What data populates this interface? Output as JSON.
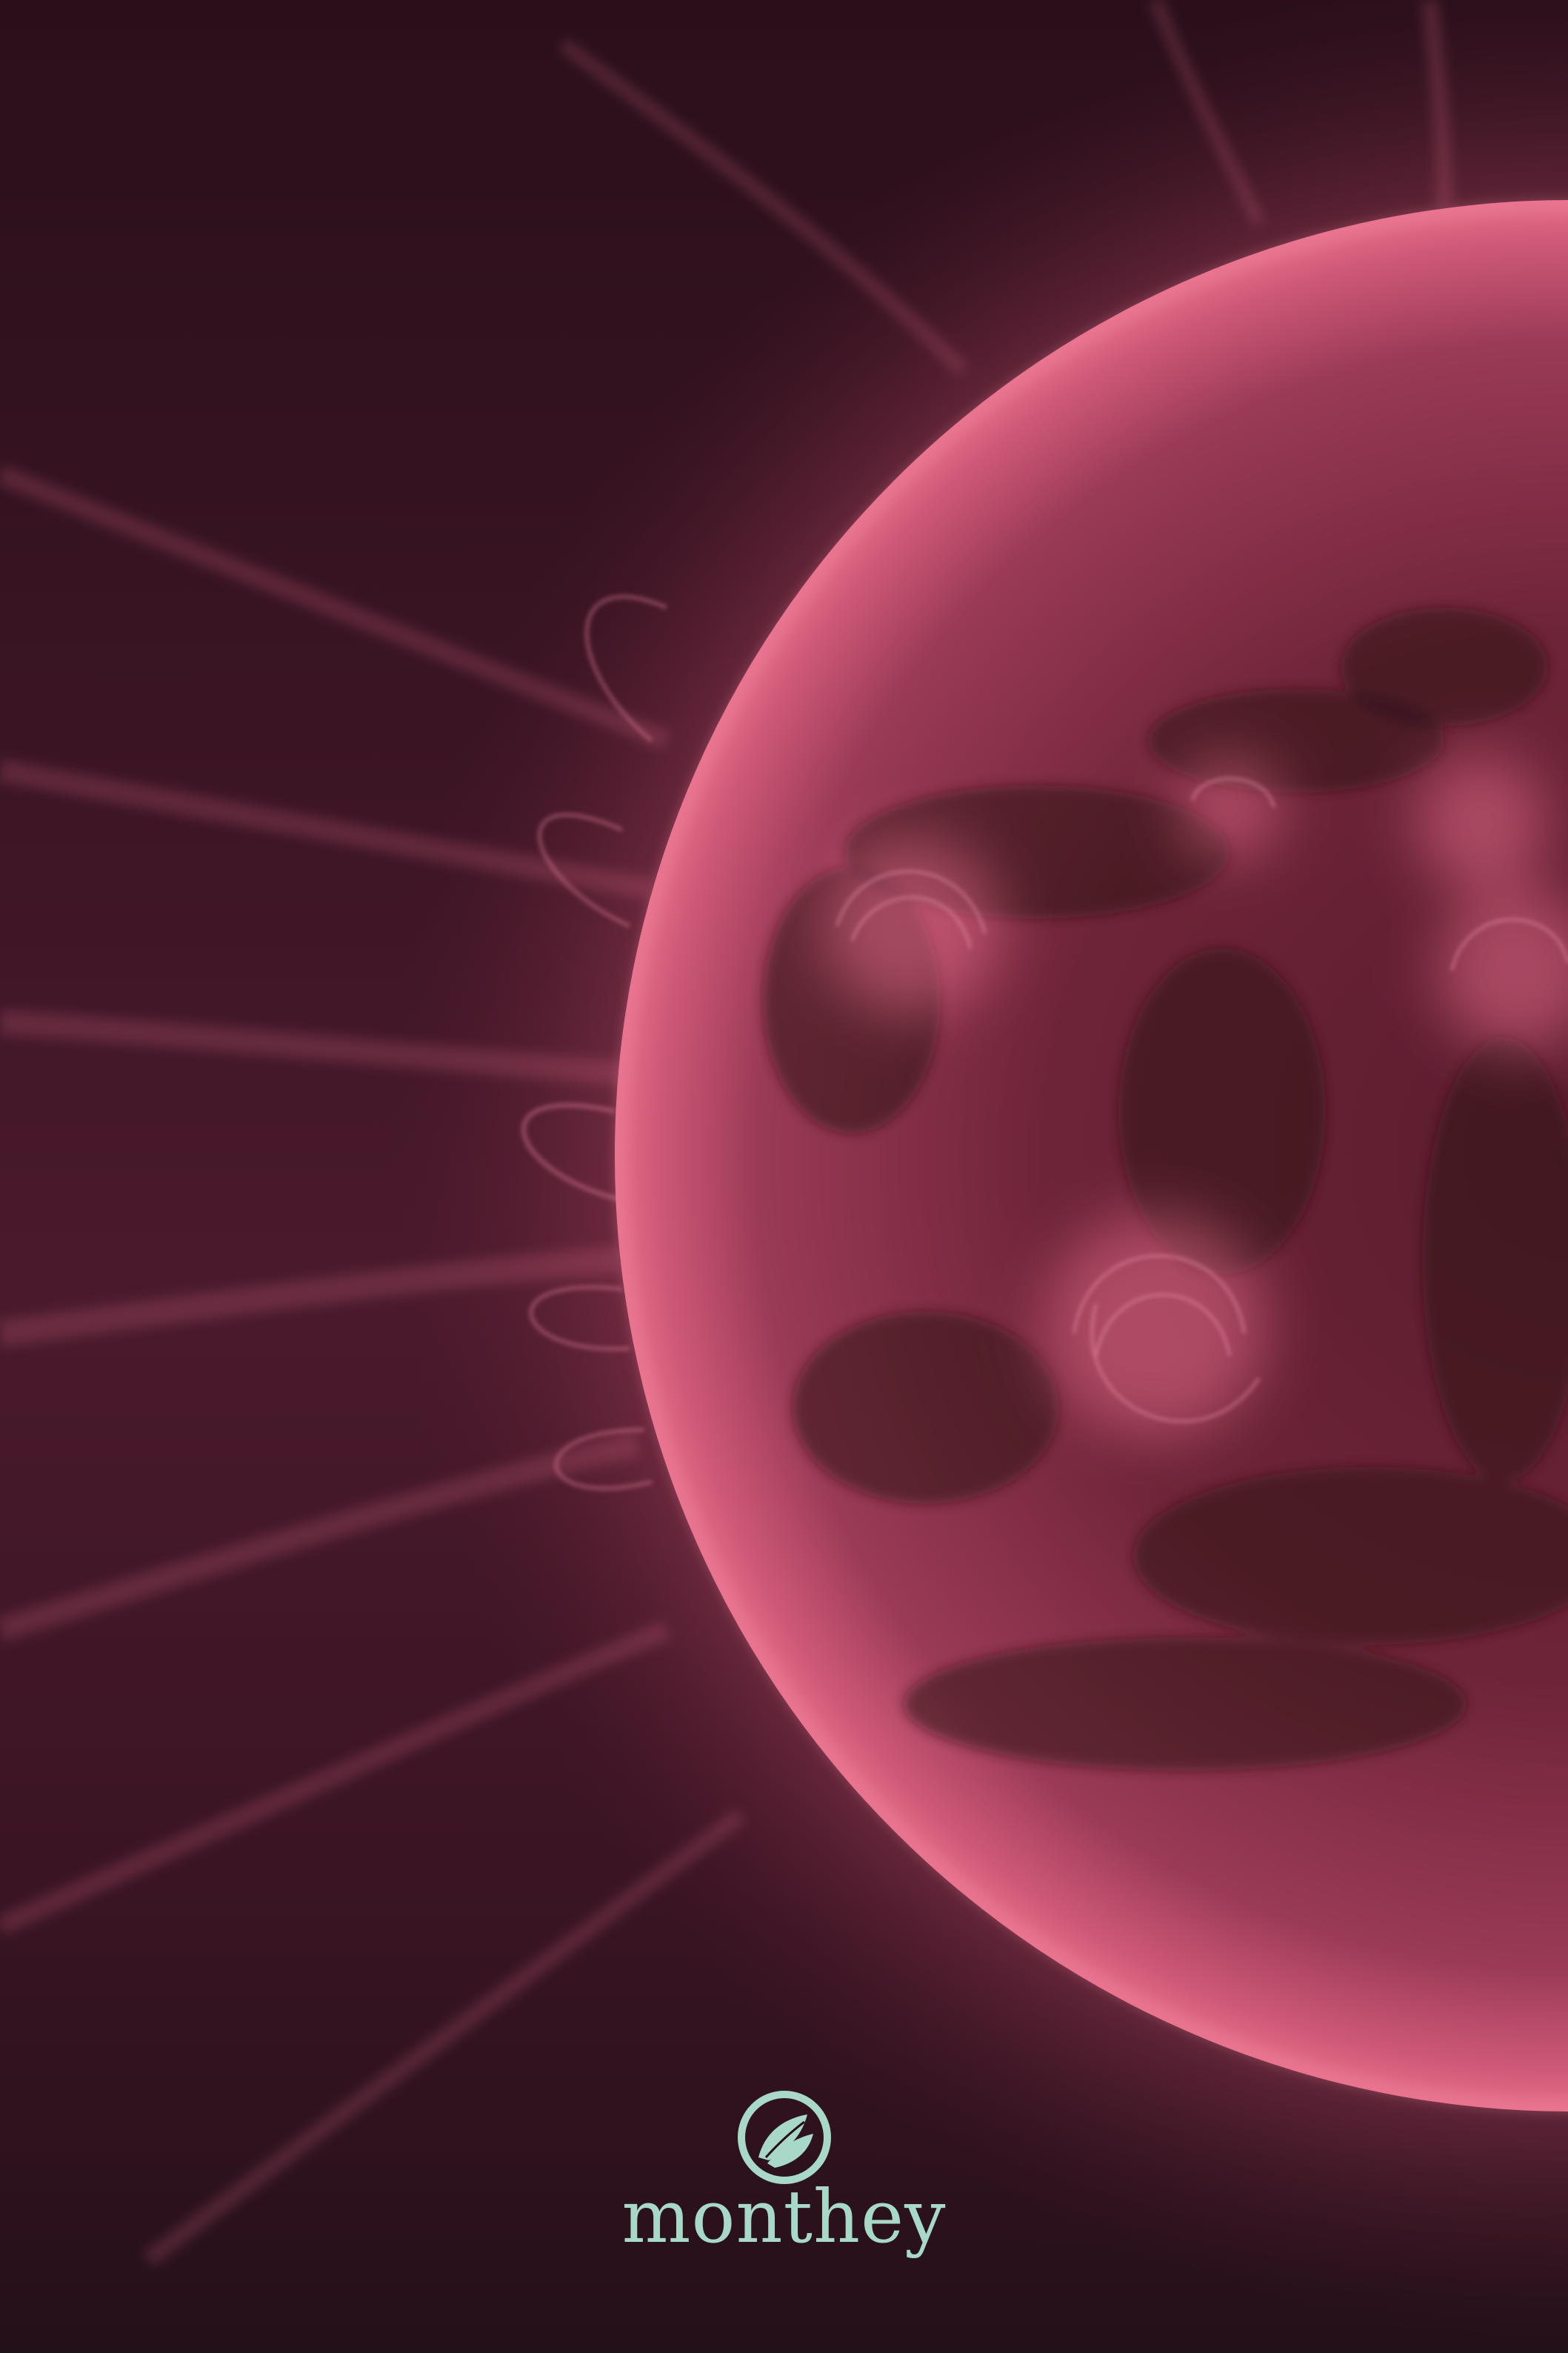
{
  "brand": {
    "name": "monthey",
    "logo_icon": "leaf-emblem-icon",
    "color": "#a8d8c8"
  },
  "colors": {
    "sun_surface": "#7a2a40",
    "sun_glow": "#e05a78",
    "background": "#2a0f1a"
  }
}
